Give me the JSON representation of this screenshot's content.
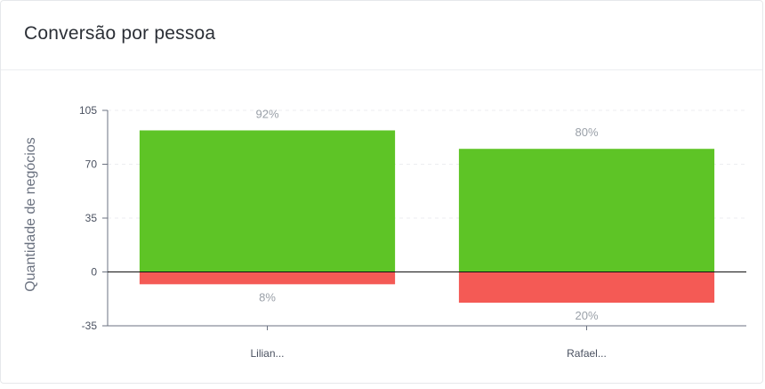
{
  "card": {
    "title": "Conversão por pessoa"
  },
  "chart_data": {
    "type": "bar",
    "stacked": true,
    "categories": [
      "Lilian...",
      "Rafael..."
    ],
    "series": [
      {
        "values": [
          92,
          80
        ],
        "labels": [
          "92%",
          "80%"
        ],
        "color": "#5ec426"
      },
      {
        "values": [
          -8,
          -20
        ],
        "labels": [
          "8%",
          "20%"
        ],
        "color": "#f45a55"
      }
    ],
    "ylabel": "Quantidade de negócios",
    "ylim": [
      -35,
      105
    ],
    "yticks": [
      105,
      70,
      35,
      0,
      -35
    ],
    "grid": true,
    "zero_line_color": "#111111",
    "label_color": "#9aa0a8",
    "tick_color": "#4a5160"
  }
}
